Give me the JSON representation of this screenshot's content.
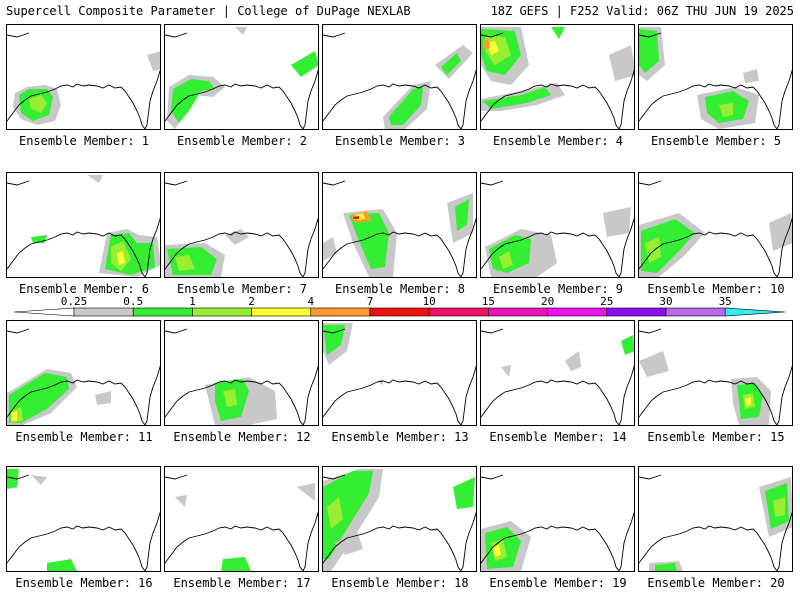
{
  "header": {
    "title_left": "Supercell Composite Parameter | College of DuPage NEXLAB",
    "title_right": "18Z GEFS | F252 Valid: 06Z THU JUN 19 2025"
  },
  "colorbar": {
    "tick_labels": [
      "0.25",
      "0.5",
      "1",
      "2",
      "4",
      "7",
      "10",
      "15",
      "20",
      "25",
      "30",
      "35"
    ],
    "colors": [
      "#c8c8c8",
      "#33ee33",
      "#99ee33",
      "#ffff33",
      "#ff9933",
      "#ee1111",
      "#ee1166",
      "#ee11bb",
      "#ee11ee",
      "#8811ee",
      "#bb66ee",
      "#33eeee"
    ]
  },
  "panels": [
    {
      "label": "Ensemble Member: 1"
    },
    {
      "label": "Ensemble Member: 2"
    },
    {
      "label": "Ensemble Member: 3"
    },
    {
      "label": "Ensemble Member: 4"
    },
    {
      "label": "Ensemble Member: 5"
    },
    {
      "label": "Ensemble Member: 6"
    },
    {
      "label": "Ensemble Member: 7"
    },
    {
      "label": "Ensemble Member: 8"
    },
    {
      "label": "Ensemble Member: 9"
    },
    {
      "label": "Ensemble Member: 10"
    },
    {
      "label": "Ensemble Member: 11"
    },
    {
      "label": "Ensemble Member: 12"
    },
    {
      "label": "Ensemble Member: 13"
    },
    {
      "label": "Ensemble Member: 14"
    },
    {
      "label": "Ensemble Member: 15"
    },
    {
      "label": "Ensemble Member: 16"
    },
    {
      "label": "Ensemble Member: 17"
    },
    {
      "label": "Ensemble Member: 18"
    },
    {
      "label": "Ensemble Member: 19"
    },
    {
      "label": "Ensemble Member: 20"
    }
  ]
}
